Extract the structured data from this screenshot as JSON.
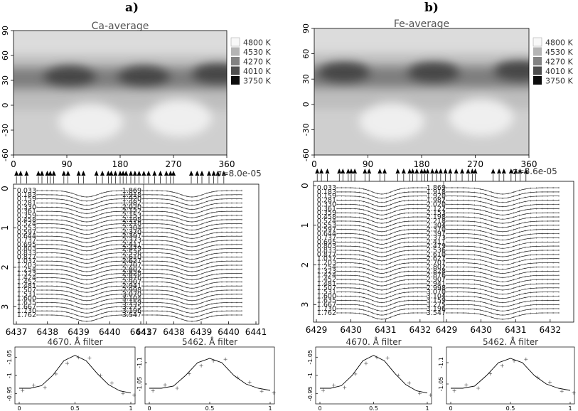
{
  "panels": [
    {
      "tag": "a)",
      "map": {
        "title": "Ca-average",
        "x_ticks": [
          "0",
          "90",
          "180",
          "270",
          "360"
        ],
        "y_ticks": [
          "90",
          "60",
          "30",
          "0",
          "-30",
          "-60"
        ],
        "legend": [
          {
            "label": "4800  K",
            "color": "#f8f8f8"
          },
          {
            "label": "4530  K",
            "color": "#b4b4b4"
          },
          {
            "label": "4270  K",
            "color": "#828282"
          },
          {
            "label": "4010  K",
            "color": "#4e4e4e"
          },
          {
            "label": "3750  K",
            "color": "#0c0c0c"
          }
        ],
        "sigma_label": "σ=8.0e-05"
      },
      "profiles": {
        "x_ticks": [
          "6437",
          "6438",
          "6439",
          "6440",
          "6441",
          "6437",
          "6438",
          "6439",
          "6440",
          "6441"
        ],
        "y_ticks": [
          "0",
          "1",
          "2",
          "3"
        ],
        "phases_left": [
          "0.033",
          "0.183",
          "0.159",
          "0.281",
          "0.330",
          "0.361",
          "0.359",
          "0.458",
          "0.524",
          "0.553",
          "0.597",
          "0.644",
          "0.737",
          "0.695",
          "0.803",
          "0.833",
          "0.877",
          "1.037",
          "1.203",
          "1.254",
          "1.323",
          "1.424",
          "1.452",
          "1.481",
          "1.507",
          "1.531",
          "1.600",
          "1.635",
          "1.667",
          "1.730",
          "1.762"
        ],
        "phases_right": [
          "1.869",
          "1.918",
          "1.920",
          "1.982",
          "2.020",
          "2.122",
          "2.153",
          "2.198",
          "2.218",
          "2.304",
          "2.370",
          "2.397",
          "2.373",
          "2.411",
          "2.479",
          "2.536",
          "2.610",
          "2.627",
          "2.707",
          "2.802",
          "2.828",
          "2.876",
          "2.907",
          "2.941",
          "2.998",
          "3.070",
          "3.104",
          "3.159",
          "3.275",
          "3.196",
          "3.547"
        ]
      },
      "light_curves": [
        {
          "title": "4670. Å filter",
          "x_ticks": [
            "0",
            "0.5",
            "1"
          ],
          "y_ticks": [
            "-1.05",
            "-1",
            "-0.95"
          ]
        },
        {
          "title": "5462. Å filter",
          "x_ticks": [
            "0",
            "0.5",
            "1"
          ],
          "y_ticks": [
            "-1.1",
            "-1.05"
          ]
        }
      ]
    },
    {
      "tag": "b)",
      "map": {
        "title": "Fe-average",
        "x_ticks": [
          "0",
          "90",
          "180",
          "270",
          "360"
        ],
        "y_ticks": [
          "90",
          "60",
          "30",
          "0",
          "-30",
          "-60"
        ],
        "legend": [
          {
            "label": "4800  K",
            "color": "#f8f8f8"
          },
          {
            "label": "4530  K",
            "color": "#b4b4b4"
          },
          {
            "label": "4270  K",
            "color": "#828282"
          },
          {
            "label": "4010  K",
            "color": "#4e4e4e"
          },
          {
            "label": "3750  K",
            "color": "#0c0c0c"
          }
        ],
        "sigma_label": "σ=8.6e-05"
      },
      "profiles": {
        "x_ticks": [
          "6429",
          "6430",
          "6431",
          "6432",
          "6429",
          "6430",
          "6431",
          "6432"
        ],
        "y_ticks": [
          "0",
          "1",
          "2",
          "3"
        ],
        "phases_left": [
          "0.033",
          "0.183",
          "0.159",
          "0.281",
          "0.330",
          "0.361",
          "0.359",
          "0.458",
          "0.524",
          "0.553",
          "0.597",
          "0.644",
          "0.737",
          "0.695",
          "0.803",
          "0.833",
          "0.877",
          "1.037",
          "1.203",
          "1.254",
          "1.323",
          "1.424",
          "1.452",
          "1.481",
          "1.507",
          "1.531",
          "1.600",
          "1.635",
          "1.667",
          "1.730",
          "1.762"
        ],
        "phases_right": [
          "1.869",
          "1.918",
          "1.920",
          "1.982",
          "2.020",
          "2.122",
          "2.153",
          "2.198",
          "2.218",
          "2.304",
          "2.370",
          "2.397",
          "2.373",
          "2.411",
          "2.479",
          "2.536",
          "2.610",
          "2.627",
          "2.707",
          "2.802",
          "2.828",
          "2.876",
          "2.907",
          "2.941",
          "2.998",
          "3.070",
          "3.104",
          "3.159",
          "3.275",
          "3.196",
          "3.547"
        ]
      },
      "light_curves": [
        {
          "title": "4670. Å filter",
          "x_ticks": [
            "0",
            "0.5",
            "1"
          ],
          "y_ticks": [
            "-1.05",
            "-1",
            "-0.95"
          ]
        },
        {
          "title": "5462. Å filter",
          "x_ticks": [
            "0",
            "0.5",
            "1"
          ],
          "y_ticks": [
            "-1.1",
            "-1.05"
          ]
        }
      ]
    }
  ],
  "chart_data": [
    {
      "type": "heatmap",
      "title": "Ca-average",
      "xlim": [
        0,
        360
      ],
      "ylim": [
        -60,
        90
      ],
      "x_ticks": [
        0,
        90,
        180,
        270,
        360
      ],
      "y_ticks": [
        90,
        60,
        30,
        0,
        -30,
        -60
      ],
      "color_scale": [
        4800,
        4530,
        4270,
        4010,
        3750
      ],
      "spots": [
        {
          "lon": 95,
          "lat": 35
        },
        {
          "lon": 220,
          "lat": 35
        },
        {
          "lon": 345,
          "lat": 38
        }
      ],
      "bright_regions": [
        {
          "lon": 130,
          "lat": -20
        },
        {
          "lon": 280,
          "lat": -15
        }
      ],
      "observation_phases_lon": [
        5,
        12,
        22,
        42,
        48,
        57,
        62,
        68,
        85,
        92,
        110,
        118,
        140,
        150,
        160,
        165,
        172,
        180,
        185,
        190,
        198,
        205,
        212,
        220,
        228,
        238,
        248,
        258,
        265,
        270,
        300,
        310,
        318,
        330,
        338,
        345,
        355
      ]
    },
    {
      "type": "heatmap",
      "title": "Fe-average",
      "xlim": [
        0,
        360
      ],
      "ylim": [
        -60,
        90
      ],
      "x_ticks": [
        0,
        90,
        180,
        270,
        360
      ],
      "y_ticks": [
        90,
        60,
        30,
        0,
        -30,
        -60
      ],
      "color_scale": [
        4800,
        4530,
        4270,
        4010,
        3750
      ],
      "spots": [
        {
          "lon": 50,
          "lat": 38
        },
        {
          "lon": 200,
          "lat": 38
        },
        {
          "lon": 345,
          "lat": 40
        }
      ],
      "bright_regions": [
        {
          "lon": 130,
          "lat": -20
        },
        {
          "lon": 280,
          "lat": -15
        }
      ],
      "observation_phases_lon": [
        5,
        12,
        22,
        42,
        48,
        57,
        62,
        68,
        85,
        92,
        110,
        118,
        140,
        150,
        160,
        165,
        172,
        180,
        185,
        190,
        198,
        205,
        212,
        220,
        228,
        238,
        248,
        258,
        265,
        270,
        300,
        310,
        318,
        330,
        338,
        345,
        355
      ]
    },
    {
      "type": "line",
      "title": "",
      "xlim": [
        6437,
        6441
      ],
      "ylim": [
        0,
        3.3
      ],
      "line_center": 6439.05,
      "n_profiles_per_column": 31
    },
    {
      "type": "line",
      "title": "",
      "xlim": [
        6429,
        6432.6
      ],
      "ylim": [
        0,
        3.3
      ],
      "line_center": 6430.7,
      "n_profiles_per_column": 31
    },
    {
      "type": "scatter",
      "title": "4670. Å filter",
      "xlim": [
        0,
        1
      ],
      "ylim": [
        -1.07,
        -0.93
      ],
      "model_curve": {
        "x": [
          0,
          0.1,
          0.2,
          0.3,
          0.4,
          0.5,
          0.6,
          0.7,
          0.8,
          0.9,
          1.0
        ],
        "y": [
          -0.965,
          -0.965,
          -0.972,
          -1.0,
          -1.04,
          -1.055,
          -1.04,
          -1.005,
          -0.975,
          -0.958,
          -0.952
        ]
      }
    },
    {
      "type": "scatter",
      "title": "5462. Å filter",
      "xlim": [
        0,
        1
      ],
      "ylim": [
        -1.13,
        -1.01
      ],
      "model_curve": {
        "x": [
          0,
          0.1,
          0.2,
          0.3,
          0.4,
          0.5,
          0.6,
          0.7,
          0.8,
          0.9,
          1.0
        ],
        "y": [
          -1.04,
          -1.04,
          -1.045,
          -1.07,
          -1.1,
          -1.11,
          -1.1,
          -1.07,
          -1.05,
          -1.04,
          -1.035
        ]
      }
    }
  ]
}
